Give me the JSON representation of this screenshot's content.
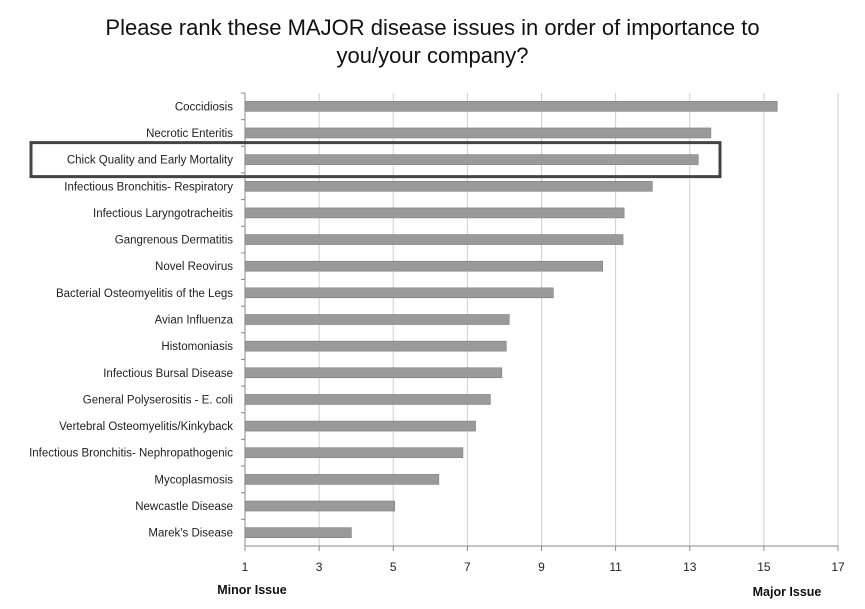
{
  "chart_data": {
    "type": "bar",
    "orientation": "horizontal",
    "title": "Please rank these MAJOR disease issues in order of importance to you/your company?",
    "title_lines": [
      "Please rank these MAJOR disease issues in order of importance to",
      "you/your company?"
    ],
    "categories": [
      "Coccidiosis",
      "Necrotic Enteritis",
      "Chick Quality and Early Mortality",
      "Infectious Bronchitis- Respiratory",
      "Infectious Laryngotracheitis",
      "Gangrenous Dermatitis",
      "Novel Reovirus",
      "Bacterial Osteomyelitis of the Legs",
      "Avian Influenza",
      "Histomoniasis",
      "Infectious Bursal Disease",
      "General Polyserositis - E. coli",
      "Vertebral Osteomyelitis/Kinkyback",
      "Infectious Bronchitis- Nephropathogenic",
      "Mycoplasmosis",
      "Newcastle Disease",
      "Marek's Disease"
    ],
    "values": [
      15.36,
      13.57,
      13.23,
      11.99,
      11.23,
      11.2,
      10.65,
      9.32,
      8.13,
      8.05,
      7.93,
      7.62,
      7.22,
      6.88,
      6.23,
      5.04,
      3.87
    ],
    "xlim": [
      1,
      17
    ],
    "xticks": [
      "1",
      "3",
      "5",
      "7",
      "9",
      "11",
      "13",
      "15",
      "17"
    ],
    "xlabel_left": "Minor Issue",
    "xlabel_right": "Major Issue",
    "grid": true,
    "highlighted_category": "Chick Quality and Early Mortality",
    "bar_color": "#9a9a9a",
    "highlight_color": "#444444"
  }
}
